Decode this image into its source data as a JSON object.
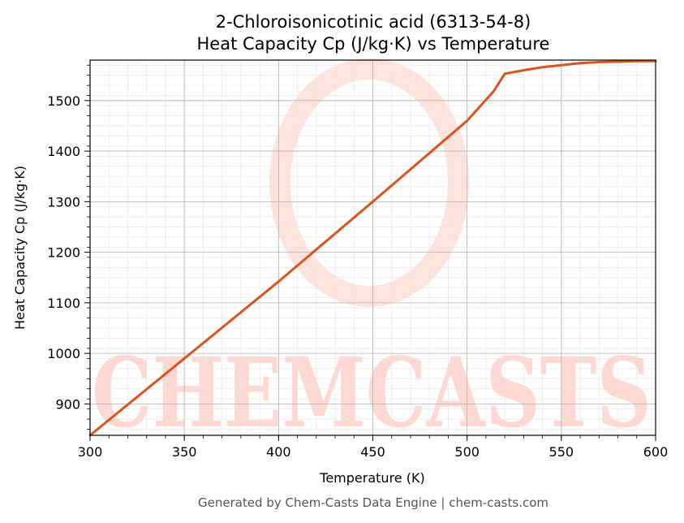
{
  "chart_data": {
    "type": "line",
    "title_lines": [
      "2-Chloroisonicotinic acid (6313-54-8)",
      "Heat Capacity Cp (J/kg·K) vs Temperature"
    ],
    "xlabel": "Temperature (K)",
    "ylabel": "Heat Capacity Cp (J/kg·K)",
    "xlim": [
      300,
      600
    ],
    "ylim": [
      838,
      1580
    ],
    "x_ticks": [
      300,
      350,
      400,
      450,
      500,
      550,
      600
    ],
    "y_ticks": [
      900,
      1000,
      1100,
      1200,
      1300,
      1400,
      1500
    ],
    "grid": true,
    "series": [
      {
        "color": "#d9541e",
        "points": [
          [
            300,
            838
          ],
          [
            350,
            990
          ],
          [
            400,
            1142
          ],
          [
            450,
            1300
          ],
          [
            500,
            1460
          ],
          [
            514,
            1518
          ],
          [
            520,
            1553
          ],
          [
            530,
            1560
          ],
          [
            540,
            1566
          ],
          [
            550,
            1570
          ],
          [
            560,
            1574
          ],
          [
            570,
            1576
          ],
          [
            580,
            1577
          ],
          [
            590,
            1578
          ],
          [
            600,
            1578
          ]
        ]
      }
    ],
    "watermark": "CHEMCASTS"
  },
  "footer": "Generated by Chem-Casts Data Engine | chem-casts.com",
  "colors": {
    "line": "#d9541e",
    "watermark": "#ffd9d1",
    "grid_major": "#b0b0b0",
    "grid_minor": "#e4e4e4"
  }
}
